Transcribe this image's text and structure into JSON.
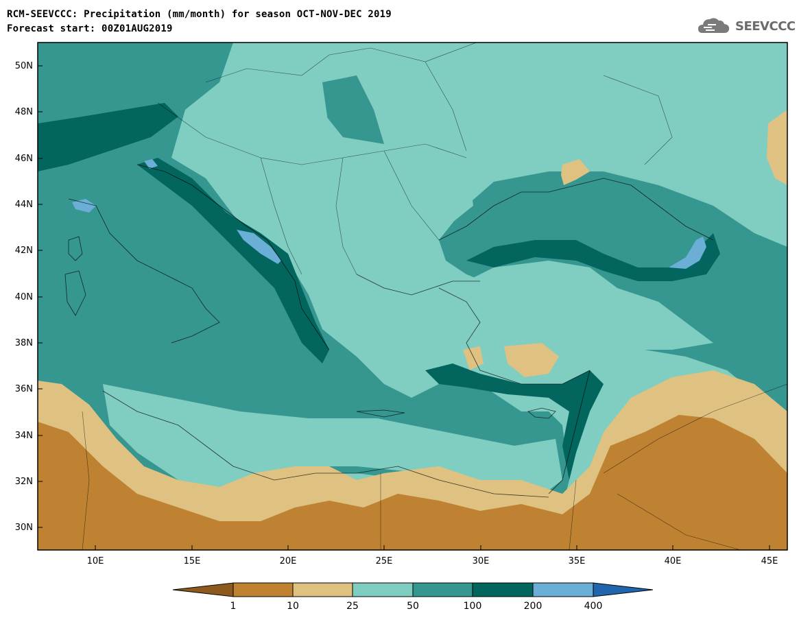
{
  "title": {
    "line1": "RCM-SEEVCCC: Precipitation (mm/month) for season OCT-NOV-DEC 2019",
    "line2": "Forecast start: 00Z01AUG2019"
  },
  "logo": {
    "text": "SEEVCCC",
    "icon": "cloud-icon"
  },
  "axes": {
    "lat_labels": [
      "50N",
      "48N",
      "46N",
      "44N",
      "42N",
      "40N",
      "38N",
      "36N",
      "34N",
      "32N",
      "30N"
    ],
    "lon_labels": [
      "10E",
      "15E",
      "20E",
      "25E",
      "30E",
      "35E",
      "40E",
      "45E"
    ]
  },
  "colorbar": {
    "labels": [
      "1",
      "10",
      "25",
      "50",
      "100",
      "200",
      "400"
    ],
    "colors": [
      "#8c5a1c",
      "#bf8232",
      "#dfc282",
      "#80cdc1",
      "#359790",
      "#02665e",
      "#6baed6",
      "#2166ac"
    ]
  }
}
